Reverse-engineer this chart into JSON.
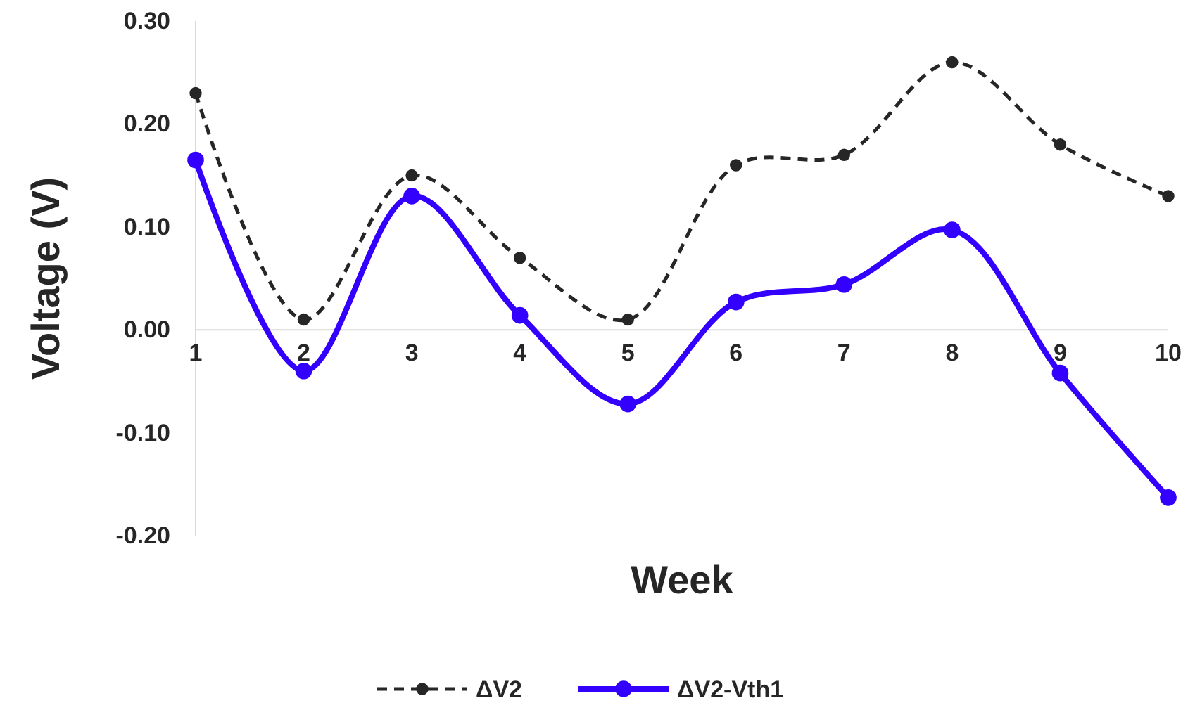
{
  "chart_data": {
    "type": "line",
    "xlabel": "Week",
    "ylabel": "Voltage (V)",
    "categories": [
      "1",
      "2",
      "3",
      "4",
      "5",
      "6",
      "7",
      "8",
      "9",
      "10"
    ],
    "series": [
      {
        "name": "ΔV2",
        "color": "#262626",
        "line_style": "dashed",
        "marker": "circle",
        "values": [
          0.23,
          0.01,
          0.15,
          0.07,
          0.01,
          0.16,
          0.17,
          0.26,
          0.18,
          0.13
        ]
      },
      {
        "name": "ΔV2-Vth1",
        "color": "#3300ff",
        "line_style": "solid",
        "marker": "circle",
        "values": [
          0.165,
          -0.04,
          0.13,
          0.014,
          -0.072,
          0.027,
          0.044,
          0.097,
          -0.042,
          -0.163
        ]
      }
    ],
    "ylim": [
      -0.2,
      0.3
    ],
    "yticks": [
      {
        "value": -0.2,
        "label": "-0.20"
      },
      {
        "value": -0.1,
        "label": "-0.10"
      },
      {
        "value": 0,
        "label": "0.00"
      },
      {
        "value": 0.1,
        "label": "0.10"
      },
      {
        "value": 0.2,
        "label": "0.20"
      },
      {
        "value": 0.3,
        "label": "0.30"
      }
    ],
    "grid": false,
    "legend": "bottom"
  }
}
